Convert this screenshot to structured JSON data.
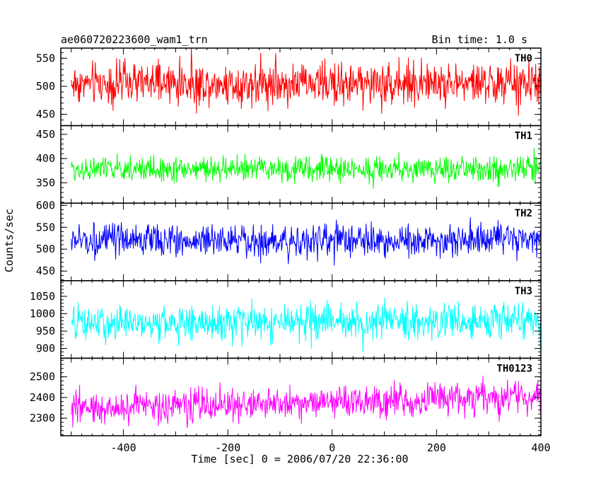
{
  "header": {
    "title": "ae060720223600_wam1_trn",
    "bin_time": "Bin time: 1.0 s"
  },
  "chart_data": {
    "type": "line",
    "xlabel": "Time [sec] 0 = 2006/07/20 22:36:00",
    "ylabel": "Counts/sec",
    "xlim": [
      -520,
      400
    ],
    "x_ticks": [
      "-400",
      "-200",
      "0",
      "200",
      "400"
    ],
    "x_tick_values": [
      -400,
      -200,
      0,
      200,
      400
    ],
    "grid": false,
    "bin_time_s": 1.0,
    "x_start": -500,
    "x_end": 400,
    "panels": [
      {
        "label": "TH0",
        "color": "#ff0000",
        "ylim": [
          430,
          568
        ],
        "mean": 505,
        "spread": 55,
        "trend": 0,
        "y_ticks": [
          "450",
          "500",
          "550"
        ],
        "y_tick_values": [
          450,
          500,
          550
        ]
      },
      {
        "label": "TH1",
        "color": "#00ff00",
        "ylim": [
          308,
          468
        ],
        "mean": 378,
        "spread": 38,
        "trend": 0,
        "y_ticks": [
          "350",
          "400",
          "450"
        ],
        "y_tick_values": [
          350,
          400,
          450
        ]
      },
      {
        "label": "TH2",
        "color": "#0000ff",
        "ylim": [
          428,
          605
        ],
        "mean": 520,
        "spread": 55,
        "trend": 0,
        "y_ticks": [
          "450",
          "500",
          "550",
          "600"
        ],
        "y_tick_values": [
          450,
          500,
          550,
          600
        ]
      },
      {
        "label": "TH3",
        "color": "#00ffff",
        "ylim": [
          872,
          1095
        ],
        "mean": 975,
        "spread": 75,
        "trend": 10,
        "y_ticks": [
          "900",
          "950",
          "1000",
          "1050"
        ],
        "y_tick_values": [
          900,
          950,
          1000,
          1050
        ]
      },
      {
        "label": "TH0123",
        "color": "#ff00ff",
        "ylim": [
          2215,
          2590
        ],
        "mean": 2375,
        "spread": 120,
        "trend": 60,
        "y_ticks": [
          "2300",
          "2400",
          "2500"
        ],
        "y_tick_values": [
          2300,
          2400,
          2500
        ]
      }
    ]
  }
}
